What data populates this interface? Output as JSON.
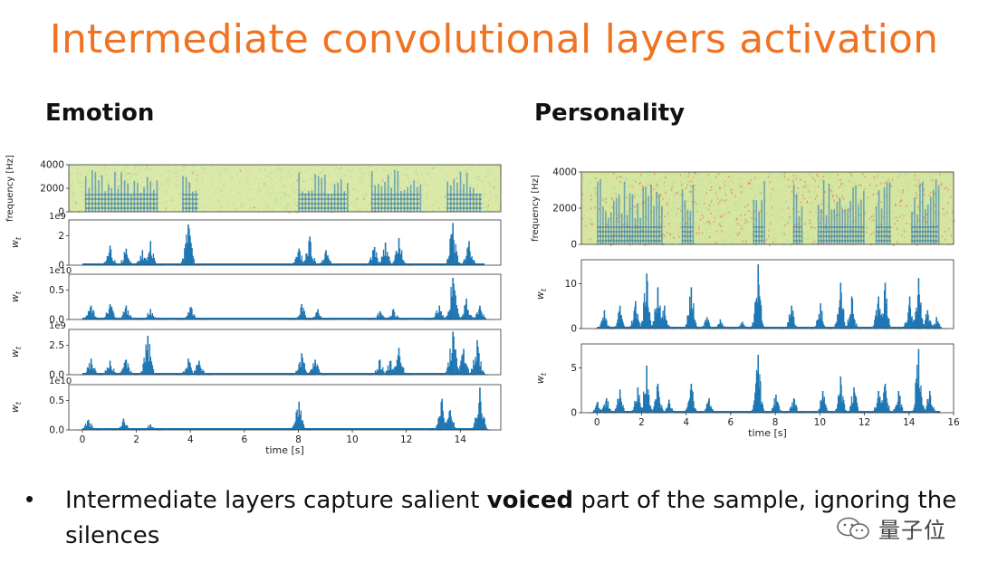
{
  "slide": {
    "title": "Intermediate convolutional layers activation",
    "emotion_heading": "Emotion",
    "personality_heading": "Personality",
    "bullet_pre": "Intermediate layers capture salient",
    "bullet_bold": "voiced",
    "bullet_post": "part of the sample, ignoring the silences",
    "watermark": "量子位",
    "colors": {
      "title": "#f07322",
      "bar": "#1f77b4"
    }
  },
  "chart_data": [
    {
      "id": "emotion",
      "type": "area",
      "xlabel": "time [s]",
      "xticks": [
        "0",
        "2",
        "4",
        "6",
        "8",
        "10",
        "12",
        "14"
      ],
      "xlim": [
        -0.5,
        15.5
      ],
      "panels": [
        {
          "kind": "spectrogram",
          "ylabel": "frequency [Hz]",
          "yticks": [
            "4000",
            "2000",
            "0"
          ],
          "ylim": [
            0,
            4000
          ],
          "voiced_segments": [
            [
              0.1,
              2.8
            ],
            [
              3.7,
              4.3
            ],
            [
              8.0,
              9.8
            ],
            [
              10.7,
              12.5
            ],
            [
              13.5,
              14.8
            ]
          ]
        },
        {
          "kind": "activation",
          "ylabel": "w_t",
          "offset": "1e9",
          "yticks": [
            "2",
            "0"
          ],
          "ylim": [
            0,
            3
          ],
          "peaks": [
            [
              1.0,
              1.3
            ],
            [
              1.6,
              1.1
            ],
            [
              2.2,
              1.0
            ],
            [
              2.5,
              1.6
            ],
            [
              3.9,
              2.7
            ],
            [
              8.0,
              1.1
            ],
            [
              8.4,
              1.9
            ],
            [
              9.0,
              1.0
            ],
            [
              10.8,
              1.2
            ],
            [
              11.2,
              1.5
            ],
            [
              11.7,
              1.8
            ],
            [
              13.7,
              2.8
            ],
            [
              14.3,
              1.6
            ]
          ]
        },
        {
          "kind": "activation",
          "ylabel": "w_t",
          "offset": "1e10",
          "yticks": [
            "0.5",
            "0.0"
          ],
          "ylim": [
            0,
            0.65
          ],
          "peaks": [
            [
              0.3,
              0.2
            ],
            [
              1.0,
              0.22
            ],
            [
              1.6,
              0.2
            ],
            [
              2.5,
              0.15
            ],
            [
              4.0,
              0.18
            ],
            [
              8.1,
              0.22
            ],
            [
              8.7,
              0.15
            ],
            [
              11.0,
              0.12
            ],
            [
              11.5,
              0.15
            ],
            [
              13.2,
              0.2
            ],
            [
              13.7,
              0.6
            ],
            [
              14.2,
              0.3
            ],
            [
              14.7,
              0.2
            ]
          ]
        },
        {
          "kind": "activation",
          "ylabel": "w_t",
          "offset": "1e9",
          "yticks": [
            "2.5",
            "0.0"
          ],
          "ylim": [
            0,
            4.2
          ],
          "peaks": [
            [
              0.3,
              1.5
            ],
            [
              1.0,
              1.3
            ],
            [
              1.6,
              1.4
            ],
            [
              2.4,
              3.6
            ],
            [
              3.9,
              1.5
            ],
            [
              4.3,
              1.3
            ],
            [
              8.1,
              2.0
            ],
            [
              8.6,
              1.4
            ],
            [
              11.0,
              1.4
            ],
            [
              11.4,
              1.3
            ],
            [
              11.7,
              2.5
            ],
            [
              13.7,
              4.0
            ],
            [
              14.1,
              2.4
            ],
            [
              14.6,
              3.2
            ]
          ]
        },
        {
          "kind": "activation",
          "ylabel": "w_t",
          "offset": "1e10",
          "yticks": [
            "0.5",
            "0.0"
          ],
          "ylim": [
            0,
            0.8
          ],
          "peaks": [
            [
              0.2,
              0.18
            ],
            [
              1.5,
              0.2
            ],
            [
              2.5,
              0.1
            ],
            [
              8.0,
              0.5
            ],
            [
              13.3,
              0.55
            ],
            [
              13.6,
              0.35
            ],
            [
              14.7,
              0.75
            ]
          ]
        }
      ]
    },
    {
      "id": "personality",
      "type": "area",
      "xlabel": "time [s]",
      "xticks": [
        "0",
        "2",
        "4",
        "6",
        "8",
        "10",
        "12",
        "14",
        "16"
      ],
      "xlim": [
        -0.7,
        16.0
      ],
      "panels": [
        {
          "kind": "spectrogram",
          "ylabel": "frequency [Hz]",
          "yticks": [
            "4000",
            "2000",
            "0"
          ],
          "ylim": [
            0,
            4000
          ],
          "voiced_segments": [
            [
              0.0,
              2.9
            ],
            [
              3.8,
              4.3
            ],
            [
              7.0,
              7.5
            ],
            [
              8.8,
              9.2
            ],
            [
              9.9,
              12.0
            ],
            [
              12.5,
              13.2
            ],
            [
              14.1,
              15.3
            ]
          ]
        },
        {
          "kind": "activation",
          "ylabel": "w_t",
          "yticks": [
            "10",
            "0"
          ],
          "ylim": [
            0,
            15
          ],
          "peaks": [
            [
              0.3,
              4.0
            ],
            [
              1.0,
              5.0
            ],
            [
              1.7,
              6.0
            ],
            [
              2.2,
              12.0
            ],
            [
              2.7,
              9.0
            ],
            [
              3.0,
              5.0
            ],
            [
              4.2,
              9.0
            ],
            [
              4.9,
              2.5
            ],
            [
              5.5,
              2.0
            ],
            [
              6.5,
              1.5
            ],
            [
              7.2,
              14.0
            ],
            [
              8.7,
              5.0
            ],
            [
              10.0,
              5.5
            ],
            [
              10.9,
              10.0
            ],
            [
              11.4,
              7.0
            ],
            [
              12.6,
              7.0
            ],
            [
              12.9,
              10.0
            ],
            [
              14.0,
              7.0
            ],
            [
              14.4,
              11.0
            ],
            [
              14.8,
              4.0
            ],
            [
              15.2,
              2.5
            ]
          ]
        },
        {
          "kind": "activation",
          "ylabel": "w_t",
          "yticks": [
            "5",
            "0"
          ],
          "ylim": [
            0,
            9.5
          ],
          "peaks": [
            [
              0.0,
              1.5
            ],
            [
              0.4,
              2.0
            ],
            [
              1.0,
              3.2
            ],
            [
              1.8,
              3.5
            ],
            [
              2.2,
              6.5
            ],
            [
              2.7,
              4.0
            ],
            [
              3.2,
              1.8
            ],
            [
              4.2,
              4.0
            ],
            [
              5.0,
              2.0
            ],
            [
              7.2,
              8.0
            ],
            [
              8.0,
              2.5
            ],
            [
              8.8,
              2.0
            ],
            [
              10.1,
              3.0
            ],
            [
              10.9,
              5.0
            ],
            [
              11.5,
              3.5
            ],
            [
              12.6,
              3.0
            ],
            [
              12.9,
              4.0
            ],
            [
              13.5,
              3.0
            ],
            [
              14.4,
              8.8
            ],
            [
              14.9,
              3.0
            ]
          ]
        }
      ]
    }
  ]
}
